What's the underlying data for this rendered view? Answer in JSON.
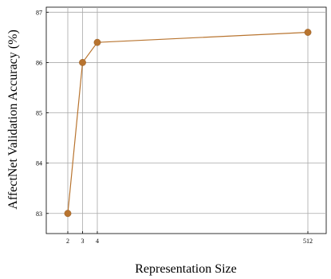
{
  "chart_data": {
    "type": "line",
    "title": "",
    "xlabel": "Representation Size",
    "ylabel": "AffectNet Validation Accuracy (%)",
    "x": [
      2,
      3,
      4,
      512
    ],
    "x_tick_labels": [
      "2",
      "3",
      "4",
      "512"
    ],
    "y_ticks": [
      83,
      84,
      85,
      86,
      87
    ],
    "ylim": [
      82.6,
      87.1
    ],
    "grid": true,
    "series": [
      {
        "values": [
          83.0,
          86.0,
          86.4,
          86.6
        ],
        "color": "#B8742F",
        "marker": "circle"
      }
    ]
  }
}
